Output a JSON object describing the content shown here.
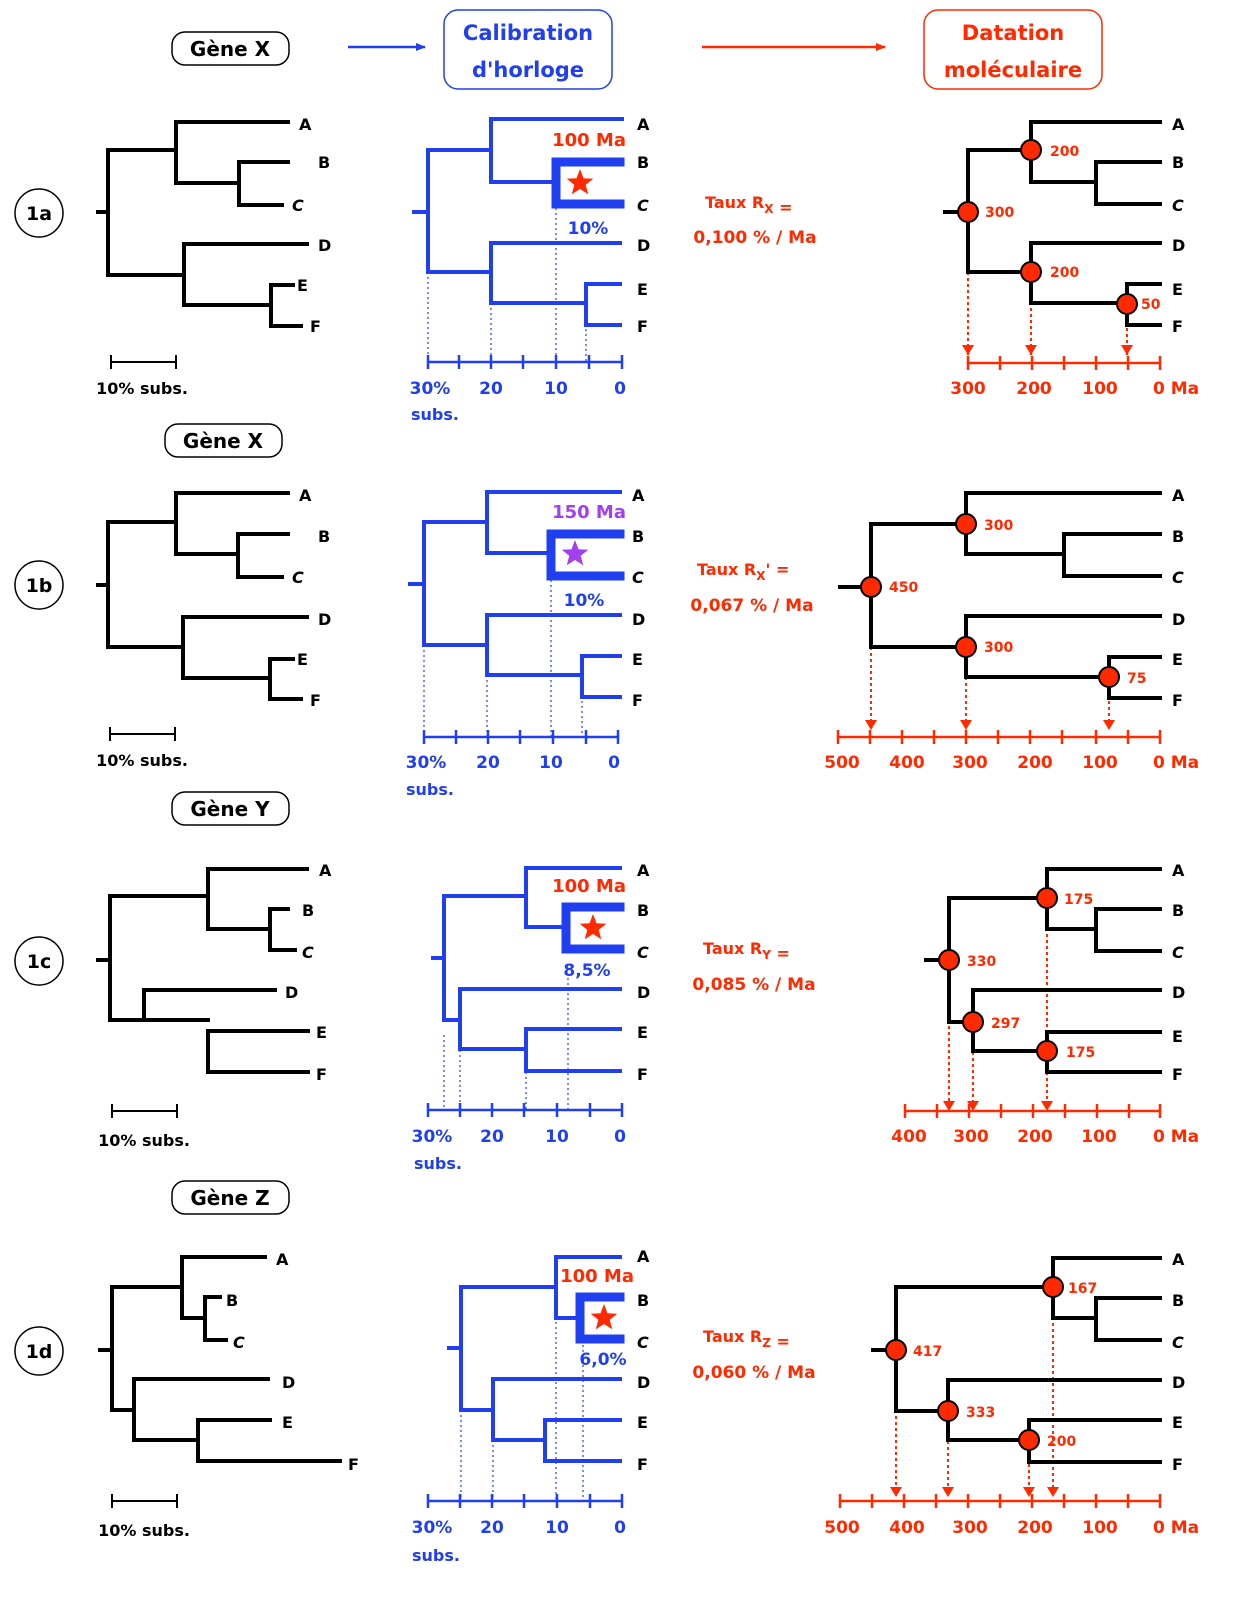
{
  "colors": {
    "black": "#000000",
    "blue": "#1f3ff0",
    "red": "#ff2a00",
    "purple": "#a040f0"
  },
  "header": {
    "calibration": [
      "Calibration",
      "d'horloge"
    ],
    "datation": [
      "Datation",
      "moléculaire"
    ]
  },
  "panels": [
    {
      "id": "1a",
      "gene": "Gène X",
      "leaves": [
        "A",
        "B",
        "C",
        "D",
        "E",
        "F"
      ],
      "scale_label": "10% subs.",
      "calib_age": "100 Ma",
      "calib_color": "red",
      "calib_pct": "10%",
      "axis_ticks": [
        "30%",
        "20",
        "10",
        "0"
      ],
      "axis_unit": "subs.",
      "rate_line1": "Taux R",
      "rate_sub": "X",
      "rate_prime": "",
      "rate_line2": "0,100 % / Ma",
      "node_ages": [
        "300",
        "200",
        "200",
        "50"
      ],
      "time_ticks": [
        "300",
        "200",
        "100",
        "0 Ma"
      ]
    },
    {
      "id": "1b",
      "gene": "Gène X",
      "leaves": [
        "A",
        "B",
        "C",
        "D",
        "E",
        "F"
      ],
      "scale_label": "10% subs.",
      "calib_age": "150 Ma",
      "calib_color": "purple",
      "calib_pct": "10%",
      "axis_ticks": [
        "30%",
        "20",
        "10",
        "0"
      ],
      "axis_unit": "subs.",
      "rate_line1": "Taux R",
      "rate_sub": "X",
      "rate_prime": "'",
      "rate_line2": "0,067 % / Ma",
      "node_ages": [
        "450",
        "300",
        "300",
        "75"
      ],
      "time_ticks": [
        "500",
        "400",
        "300",
        "200",
        "100",
        "0 Ma"
      ]
    },
    {
      "id": "1c",
      "gene": "Gène Y",
      "leaves": [
        "A",
        "B",
        "C",
        "D",
        "E",
        "F"
      ],
      "scale_label": "10% subs.",
      "calib_age": "100 Ma",
      "calib_color": "red",
      "calib_pct": "8,5%",
      "axis_ticks": [
        "30%",
        "20",
        "10",
        "0"
      ],
      "axis_unit": "subs.",
      "rate_line1": "Taux R",
      "rate_sub": "Y",
      "rate_prime": "",
      "rate_line2": "0,085 % / Ma",
      "node_ages": [
        "330",
        "175",
        "297",
        "175"
      ],
      "time_ticks": [
        "400",
        "300",
        "200",
        "100",
        "0 Ma"
      ]
    },
    {
      "id": "1d",
      "gene": "Gène Z",
      "leaves": [
        "A",
        "B",
        "C",
        "D",
        "E",
        "F"
      ],
      "scale_label": "10% subs.",
      "calib_age": "100 Ma",
      "calib_color": "red",
      "calib_pct": "6,0%",
      "axis_ticks": [
        "30%",
        "20",
        "10",
        "0"
      ],
      "axis_unit": "subs.",
      "rate_line1": "Taux R",
      "rate_sub": "Z",
      "rate_prime": "",
      "rate_line2": "0,060 % / Ma",
      "node_ages": [
        "417",
        "167",
        "333",
        "200"
      ],
      "time_ticks": [
        "500",
        "400",
        "300",
        "200",
        "100",
        "0 Ma"
      ]
    }
  ]
}
